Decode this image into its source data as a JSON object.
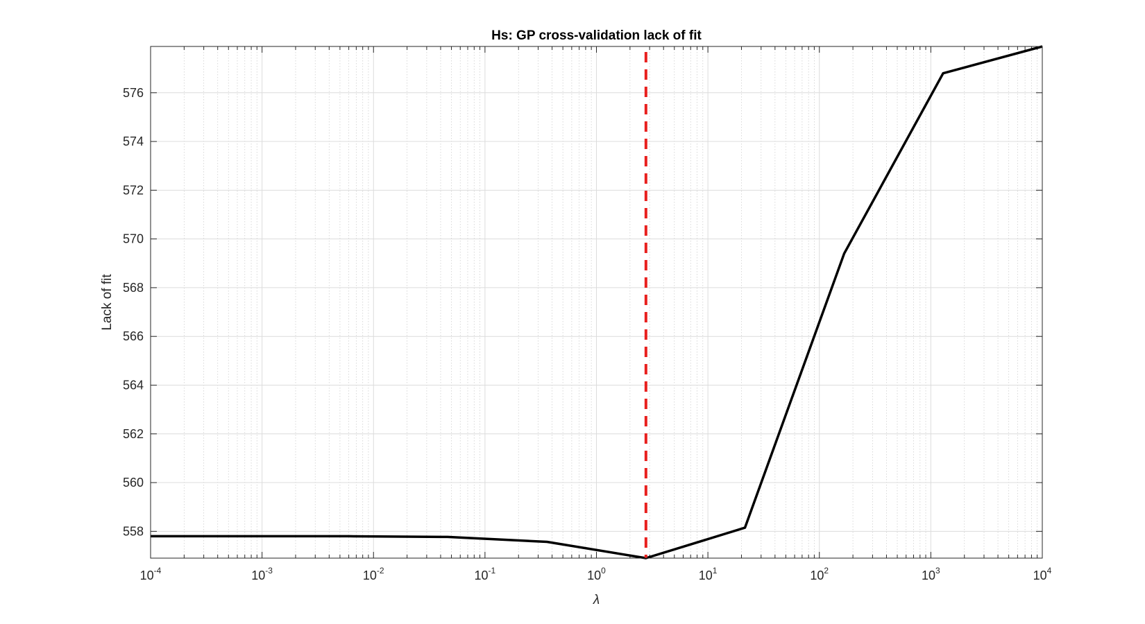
{
  "chart_data": {
    "type": "line",
    "title": "Hs: GP cross-validation lack of fit",
    "xlabel": "λ",
    "ylabel": "Lack of fit",
    "x_scale": "log",
    "xlim": [
      0.0001,
      10000
    ],
    "ylim": [
      556.9,
      577.9
    ],
    "x_ticks": [
      {
        "value": 0.0001,
        "base": "10",
        "exp": "-4"
      },
      {
        "value": 0.001,
        "base": "10",
        "exp": "-3"
      },
      {
        "value": 0.01,
        "base": "10",
        "exp": "-2"
      },
      {
        "value": 0.1,
        "base": "10",
        "exp": "-1"
      },
      {
        "value": 1,
        "base": "10",
        "exp": "0"
      },
      {
        "value": 10,
        "base": "10",
        "exp": "1"
      },
      {
        "value": 100,
        "base": "10",
        "exp": "2"
      },
      {
        "value": 1000,
        "base": "10",
        "exp": "3"
      },
      {
        "value": 10000,
        "base": "10",
        "exp": "4"
      }
    ],
    "y_ticks": [
      "558",
      "560",
      "562",
      "564",
      "566",
      "568",
      "570",
      "572",
      "574",
      "576"
    ],
    "grid": true,
    "minor_grid": true,
    "series": [
      {
        "color": "#000000",
        "x": [
          0.0001,
          0.00077,
          0.006,
          0.046,
          0.36,
          2.78,
          21.5,
          167,
          1290,
          10000
        ],
        "y": [
          557.8,
          557.8,
          557.8,
          557.77,
          557.57,
          556.9,
          558.15,
          569.4,
          576.8,
          577.9
        ]
      }
    ],
    "vline": {
      "x": 2.78,
      "color": "#e8201e",
      "style": "dashed"
    }
  }
}
